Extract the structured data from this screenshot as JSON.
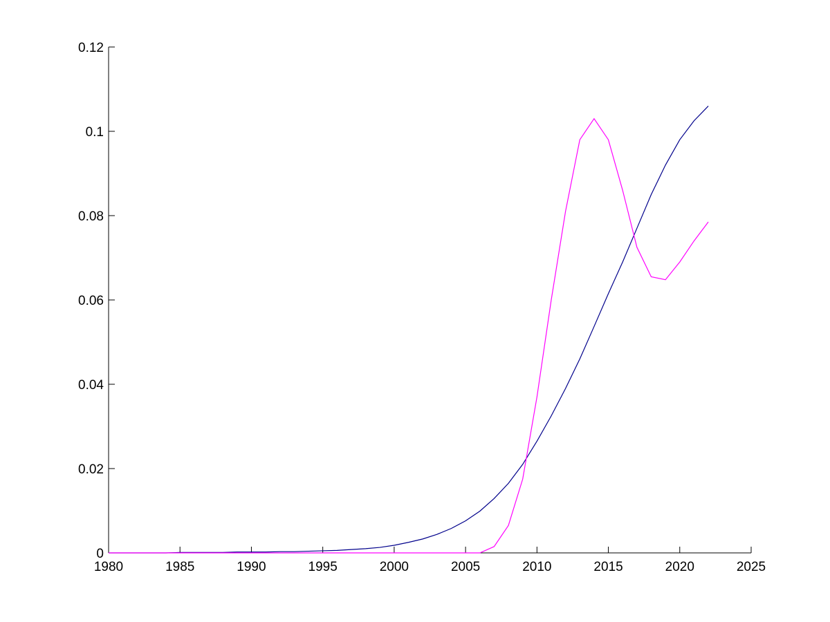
{
  "chart_data": {
    "type": "line",
    "x": [
      1980,
      1981,
      1982,
      1983,
      1984,
      1985,
      1986,
      1987,
      1988,
      1989,
      1990,
      1991,
      1992,
      1993,
      1994,
      1995,
      1996,
      1997,
      1998,
      1999,
      2000,
      2001,
      2002,
      2003,
      2004,
      2005,
      2006,
      2007,
      2008,
      2009,
      2010,
      2011,
      2012,
      2013,
      2014,
      2015,
      2016,
      2017,
      2018,
      2019,
      2020,
      2021,
      2022
    ],
    "series": [
      {
        "color": "#00008b",
        "values": [
          0,
          0,
          0,
          0,
          0,
          0.0001,
          0.0001,
          0.0001,
          0.0001,
          0.0002,
          0.0002,
          0.0002,
          0.0003,
          0.0003,
          0.0004,
          0.0005,
          0.0006,
          0.0008,
          0.001,
          0.0013,
          0.0018,
          0.0025,
          0.0033,
          0.0044,
          0.0058,
          0.0076,
          0.0099,
          0.0129,
          0.0165,
          0.021,
          0.0265,
          0.0325,
          0.039,
          0.046,
          0.0537,
          0.0615,
          0.069,
          0.077,
          0.085,
          0.092,
          0.098,
          0.1025,
          0.106
        ]
      },
      {
        "color": "#ff00ff",
        "values": [
          0,
          0,
          0,
          0,
          0,
          0,
          0,
          0,
          0,
          0,
          0,
          0,
          0,
          0,
          0,
          0,
          0,
          0,
          0,
          0,
          0,
          0,
          0,
          0,
          0,
          0,
          0,
          0.0015,
          0.0065,
          0.0175,
          0.037,
          0.06,
          0.081,
          0.098,
          0.103,
          0.098,
          0.086,
          0.0725,
          0.0655,
          0.0648,
          0.069,
          0.074,
          0.0785
        ]
      }
    ],
    "xlim": [
      1980,
      2025
    ],
    "xticks": [
      1980,
      1985,
      1990,
      1995,
      2000,
      2005,
      2010,
      2015,
      2020,
      2025
    ],
    "ylim": [
      0,
      0.12
    ],
    "yticks": [
      0,
      0.02,
      0.04,
      0.06,
      0.08,
      0.1,
      0.12
    ]
  }
}
